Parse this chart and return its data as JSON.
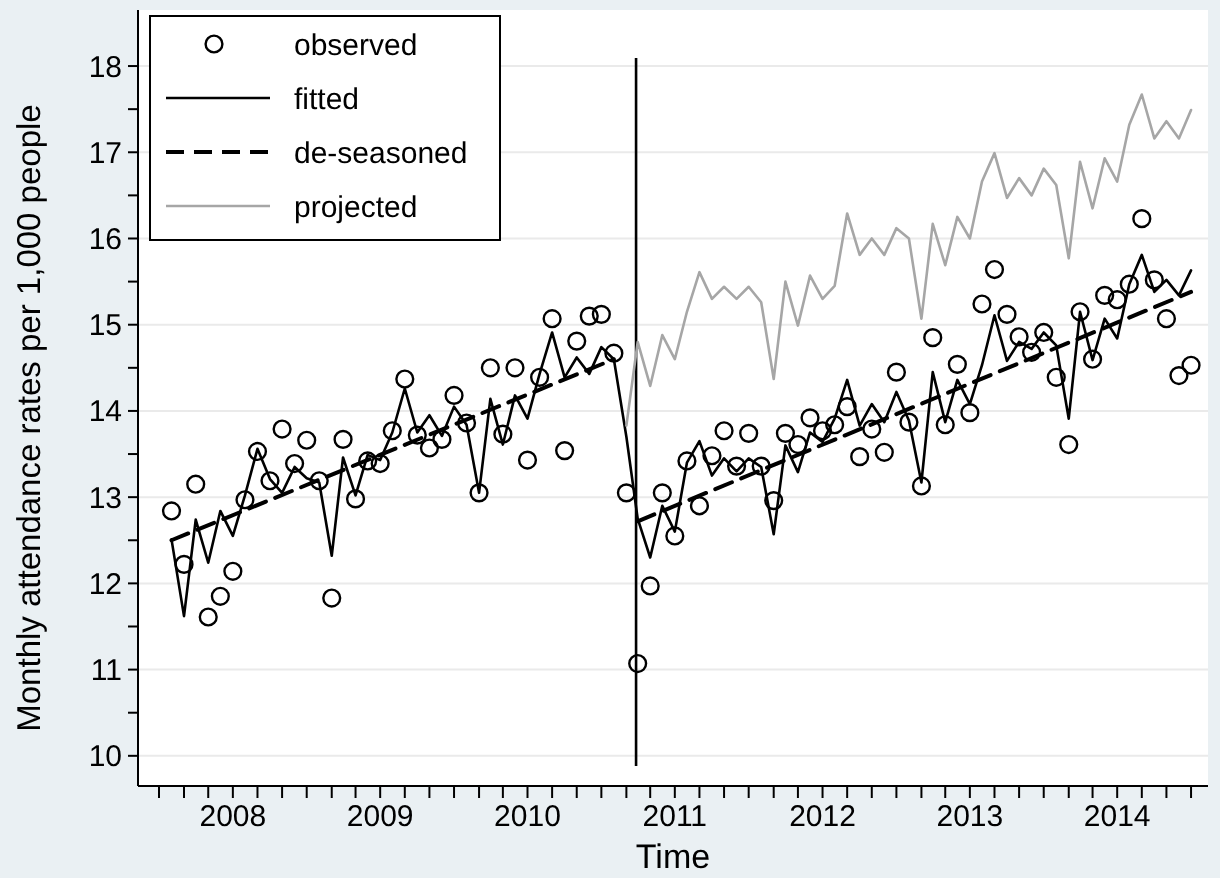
{
  "chart_data": {
    "type": "line",
    "xlabel": "Time",
    "ylabel": "Monthly attendance rates per 1,000 people",
    "x": [
      "2008-01",
      "2008-02",
      "2008-03",
      "2008-04",
      "2008-05",
      "2008-06",
      "2008-07",
      "2008-08",
      "2008-09",
      "2008-10",
      "2008-11",
      "2008-12",
      "2009-01",
      "2009-02",
      "2009-03",
      "2009-04",
      "2009-05",
      "2009-06",
      "2009-07",
      "2009-08",
      "2009-09",
      "2009-10",
      "2009-11",
      "2009-12",
      "2010-01",
      "2010-02",
      "2010-03",
      "2010-04",
      "2010-05",
      "2010-06",
      "2010-07",
      "2010-08",
      "2010-09",
      "2010-10",
      "2010-11",
      "2010-12",
      "2011-01",
      "2011-02",
      "2011-03",
      "2011-04",
      "2011-05",
      "2011-06",
      "2011-07",
      "2011-08",
      "2011-09",
      "2011-10",
      "2011-11",
      "2011-12",
      "2012-01",
      "2012-02",
      "2012-03",
      "2012-04",
      "2012-05",
      "2012-06",
      "2012-07",
      "2012-08",
      "2012-09",
      "2012-10",
      "2012-11",
      "2012-12",
      "2013-01",
      "2013-02",
      "2013-03",
      "2013-04",
      "2013-05",
      "2013-06",
      "2013-07",
      "2013-08",
      "2013-09",
      "2013-10",
      "2013-11",
      "2013-12",
      "2014-01",
      "2014-02",
      "2014-03",
      "2014-04",
      "2014-05",
      "2014-06",
      "2014-07",
      "2014-08",
      "2014-09",
      "2014-10",
      "2014-11",
      "2014-12"
    ],
    "series": [
      {
        "name": "observed",
        "type": "scatter",
        "marker": "circle",
        "color": "#000000",
        "values": [
          12.84,
          12.22,
          13.15,
          11.61,
          11.85,
          12.14,
          12.97,
          13.53,
          13.19,
          13.79,
          13.39,
          13.66,
          13.19,
          11.83,
          13.67,
          12.98,
          13.42,
          13.39,
          13.77,
          14.37,
          13.72,
          13.57,
          13.67,
          14.18,
          13.86,
          13.05,
          14.5,
          13.73,
          14.5,
          13.43,
          14.39,
          15.07,
          13.54,
          14.81,
          15.1,
          15.12,
          14.67,
          13.05,
          11.07,
          11.97,
          13.05,
          12.55,
          13.42,
          12.9,
          13.48,
          13.77,
          13.36,
          13.74,
          13.36,
          12.96,
          13.74,
          13.61,
          13.92,
          13.77,
          13.84,
          14.05,
          13.47,
          13.79,
          13.52,
          14.45,
          13.87,
          13.13,
          14.85,
          13.84,
          14.54,
          13.98,
          15.24,
          15.64,
          15.12,
          14.86,
          14.68,
          14.91,
          14.39,
          13.61,
          15.15,
          14.6,
          15.34,
          15.29,
          15.47,
          16.23,
          15.52,
          15.07,
          14.41,
          14.53
        ]
      },
      {
        "name": "fitted",
        "line_style": "solid",
        "color": "#000000",
        "values": [
          12.51,
          11.62,
          12.74,
          12.24,
          12.84,
          12.55,
          13.02,
          13.56,
          13.21,
          13.05,
          13.35,
          13.22,
          13.17,
          12.32,
          13.46,
          13.02,
          13.49,
          13.43,
          13.75,
          14.26,
          13.75,
          13.95,
          13.71,
          14.05,
          13.84,
          13.05,
          14.14,
          13.61,
          14.18,
          13.91,
          14.43,
          14.91,
          14.39,
          14.62,
          14.43,
          14.74,
          14.6,
          13.7,
          12.75,
          12.3,
          12.9,
          12.6,
          13.4,
          13.65,
          13.25,
          13.45,
          13.3,
          13.45,
          13.35,
          12.57,
          13.6,
          13.29,
          13.75,
          13.64,
          13.91,
          14.36,
          13.83,
          14.08,
          13.87,
          14.22,
          13.89,
          13.17,
          14.45,
          13.87,
          14.36,
          14.08,
          14.53,
          15.11,
          14.58,
          14.8,
          14.72,
          14.91,
          14.76,
          13.91,
          15.15,
          14.59,
          15.07,
          14.84,
          15.47,
          15.81,
          15.38,
          15.52,
          15.34,
          15.63
        ]
      },
      {
        "name": "de-seasoned",
        "line_style": "dashed",
        "color": "#000000",
        "x": [
          "2008-01",
          "2011-01",
          "2011-02",
          "2011-03",
          "2014-12"
        ],
        "values": [
          12.5,
          14.6,
          null,
          12.72,
          15.38
        ]
      },
      {
        "name": "projected",
        "line_style": "solid",
        "color": "#a6a6a6",
        "values": [
          null,
          null,
          null,
          null,
          null,
          null,
          null,
          null,
          null,
          null,
          null,
          null,
          null,
          null,
          null,
          null,
          null,
          null,
          null,
          null,
          null,
          null,
          null,
          null,
          null,
          null,
          null,
          null,
          null,
          null,
          null,
          null,
          null,
          null,
          null,
          null,
          null,
          13.83,
          14.8,
          14.29,
          14.88,
          14.6,
          15.15,
          15.61,
          15.3,
          15.44,
          15.3,
          15.44,
          15.26,
          14.37,
          15.5,
          14.99,
          15.57,
          15.3,
          15.45,
          16.29,
          15.81,
          16.0,
          15.81,
          16.12,
          16.0,
          15.07,
          16.17,
          15.69,
          16.25,
          16.0,
          16.66,
          16.99,
          16.47,
          16.7,
          16.5,
          16.81,
          16.62,
          15.77,
          16.89,
          16.35,
          16.93,
          16.66,
          17.32,
          17.67,
          17.16,
          17.36,
          17.16,
          17.49
        ]
      }
    ],
    "ref_lines": [
      {
        "axis": "x",
        "value": "2011-02-25",
        "color": "#000000"
      }
    ],
    "xlim": [
      "2007-10-10",
      "2015-01-12"
    ],
    "xticks": [
      {
        "value": "2007-12",
        "label": null
      },
      {
        "value": "2008-02",
        "label": null
      },
      {
        "value": "2008-04",
        "label": null
      },
      {
        "value": "2008-06",
        "label": "2008"
      },
      {
        "value": "2008-08",
        "label": null
      },
      {
        "value": "2008-10",
        "label": null
      },
      {
        "value": "2008-12",
        "label": null
      },
      {
        "value": "2009-02",
        "label": null
      },
      {
        "value": "2009-04",
        "label": null
      },
      {
        "value": "2009-06",
        "label": "2009"
      },
      {
        "value": "2009-08",
        "label": null
      },
      {
        "value": "2009-10",
        "label": null
      },
      {
        "value": "2009-12",
        "label": null
      },
      {
        "value": "2010-02",
        "label": null
      },
      {
        "value": "2010-04",
        "label": null
      },
      {
        "value": "2010-06",
        "label": "2010"
      },
      {
        "value": "2010-08",
        "label": null
      },
      {
        "value": "2010-10",
        "label": null
      },
      {
        "value": "2010-12",
        "label": null
      },
      {
        "value": "2011-02",
        "label": null
      },
      {
        "value": "2011-04",
        "label": null
      },
      {
        "value": "2011-06",
        "label": "2011"
      },
      {
        "value": "2011-08",
        "label": null
      },
      {
        "value": "2011-10",
        "label": null
      },
      {
        "value": "2011-12",
        "label": null
      },
      {
        "value": "2012-02",
        "label": null
      },
      {
        "value": "2012-04",
        "label": null
      },
      {
        "value": "2012-06",
        "label": "2012"
      },
      {
        "value": "2012-08",
        "label": null
      },
      {
        "value": "2012-10",
        "label": null
      },
      {
        "value": "2012-12",
        "label": null
      },
      {
        "value": "2013-02",
        "label": null
      },
      {
        "value": "2013-04",
        "label": null
      },
      {
        "value": "2013-06",
        "label": "2013"
      },
      {
        "value": "2013-08",
        "label": null
      },
      {
        "value": "2013-10",
        "label": null
      },
      {
        "value": "2013-12",
        "label": null
      },
      {
        "value": "2014-02",
        "label": null
      },
      {
        "value": "2014-04",
        "label": null
      },
      {
        "value": "2014-06",
        "label": "2014"
      },
      {
        "value": "2014-08",
        "label": null
      },
      {
        "value": "2014-10",
        "label": null
      },
      {
        "value": "2014-12",
        "label": null
      }
    ],
    "ylim": [
      9.65,
      18.65
    ],
    "yticks": [
      10,
      {
        "value": 10.5,
        "label": null
      },
      11,
      {
        "value": 11.5,
        "label": null
      },
      12,
      {
        "value": 12.5,
        "label": null
      },
      13,
      {
        "value": 13.5,
        "label": null
      },
      14,
      {
        "value": 14.5,
        "label": null
      },
      15,
      {
        "value": 15.5,
        "label": null
      },
      16,
      {
        "value": 16.5,
        "label": null
      },
      17,
      {
        "value": 17.5,
        "label": null
      },
      18
    ],
    "grid": "y",
    "legend": "top left"
  }
}
